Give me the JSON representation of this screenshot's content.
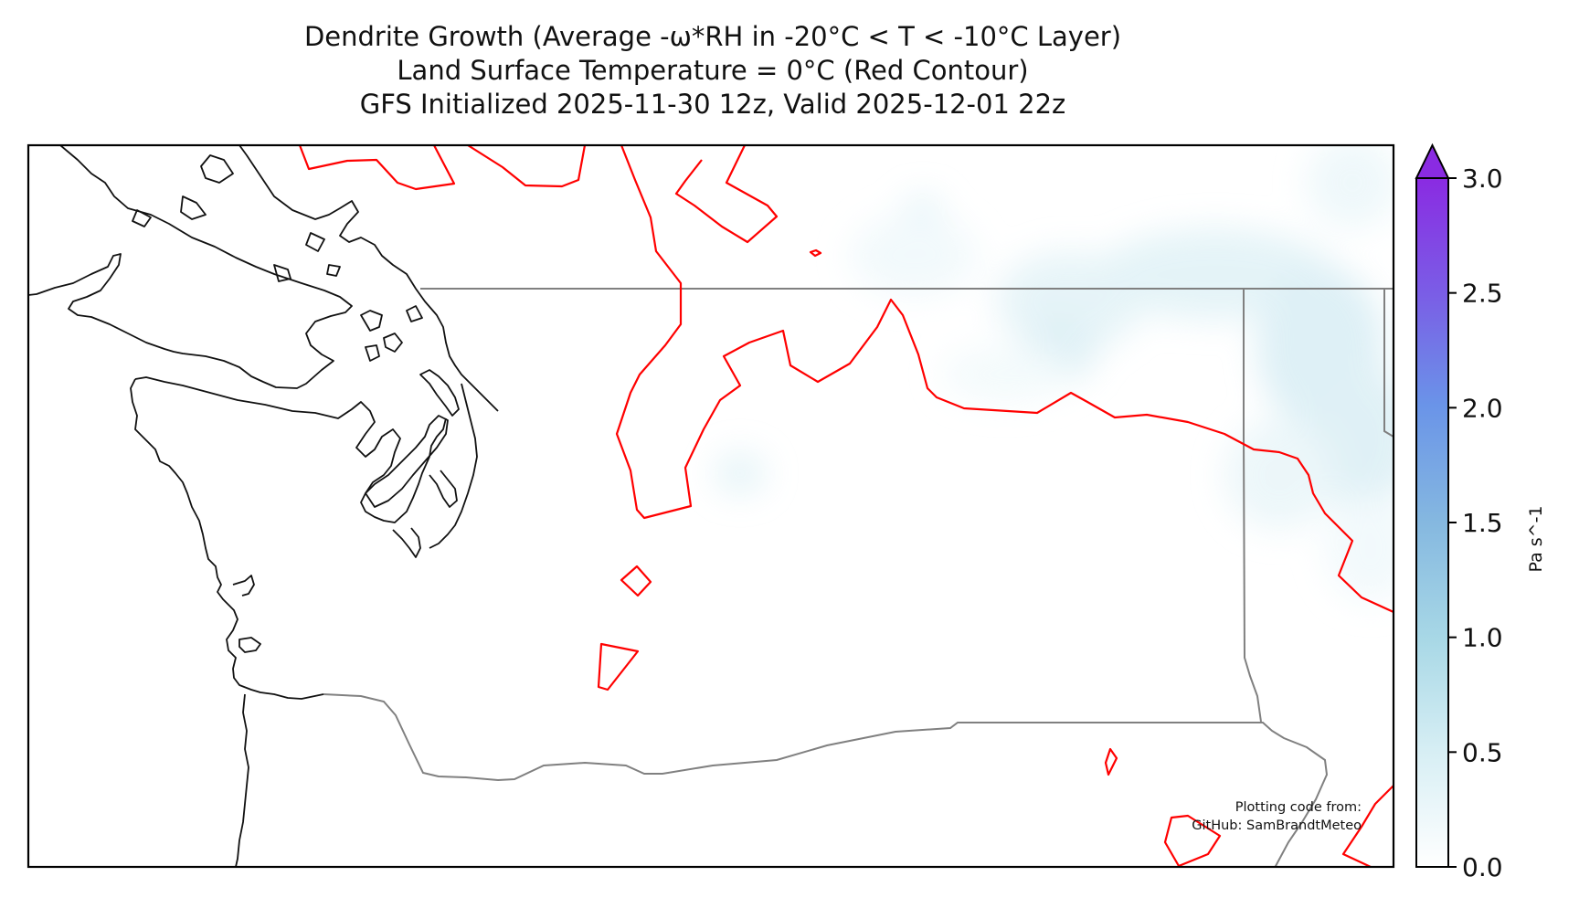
{
  "title": {
    "line1": "Dendrite Growth (Average -ω*RH in -20°C < T < -10°C Layer)",
    "line2": "Land Surface Temperature = 0°C (Red Contour)",
    "line3": "GFS Initialized 2025-11-30 12z, Valid 2025-12-01 22z"
  },
  "colorbar": {
    "label": "Pa s^-1",
    "ticks": [
      "0.0",
      "0.5",
      "1.0",
      "1.5",
      "2.0",
      "2.5",
      "3.0"
    ],
    "min": 0.0,
    "max": 3.0,
    "extend": "max",
    "colors": [
      "#ffffff",
      "#d6eef4",
      "#a8d8e6",
      "#85b8e0",
      "#6a94e8",
      "#7a5ee6",
      "#8a2be2"
    ]
  },
  "contour": {
    "color": "#ff0000",
    "level": "0°C"
  },
  "coastline_color": "#111111",
  "border_color": "#808080",
  "credit": {
    "line1": "Plotting code from:",
    "line2": "GitHub: SamBrandtMeteo"
  }
}
